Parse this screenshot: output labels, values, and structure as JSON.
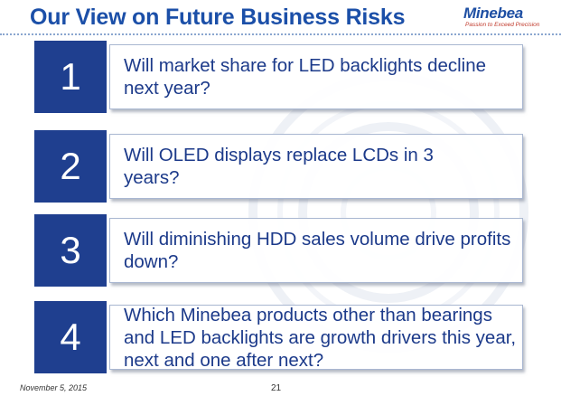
{
  "slide": {
    "title": "Our View on Future Business Risks"
  },
  "logo": {
    "name": "Minebea",
    "tagline": "Passion to Exceed Precision"
  },
  "risks": [
    {
      "number": "1",
      "question": "Will market share for LED backlights decline next year?"
    },
    {
      "number": "2",
      "question": "Will OLED displays replace LCDs in 3 years?"
    },
    {
      "number": "3",
      "question": "Will diminishing HDD sales volume drive profits down?"
    },
    {
      "number": "4",
      "question": "Which Minebea products other than bearings and LED backlights are growth drivers this year, next and one after next?"
    }
  ],
  "footer": {
    "date": "November 5, 2015",
    "page": "21"
  },
  "colors": {
    "title": "#1b4fa8",
    "number_box": "#1f3f8f",
    "question_text": "#1c3a8a",
    "tagline": "#c0392b"
  }
}
